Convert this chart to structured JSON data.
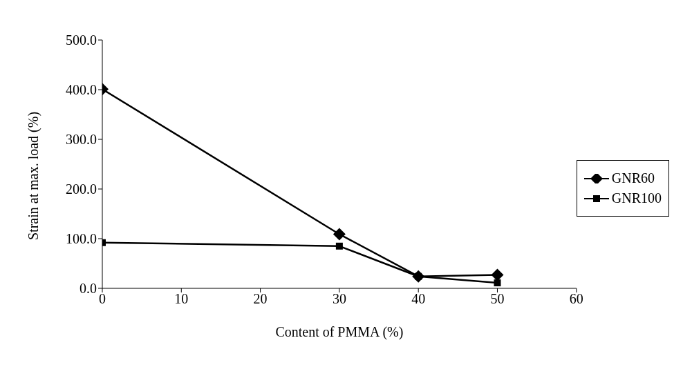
{
  "chart_data": {
    "type": "line",
    "xlabel": "Content of PMMA (%)",
    "ylabel": "Strain at max. load (%)",
    "x": [
      0,
      30,
      40,
      50
    ],
    "series": [
      {
        "name": "GNR60",
        "color": "#000000",
        "marker": "diamond",
        "values": [
          401,
          109,
          24,
          27
        ]
      },
      {
        "name": "GNR100",
        "color": "#000000",
        "marker": "square",
        "values": [
          92,
          85,
          24,
          11
        ]
      }
    ],
    "xlim": [
      0,
      60
    ],
    "xticks": [
      0,
      10,
      20,
      30,
      40,
      50,
      60
    ],
    "ylim": [
      0,
      500
    ],
    "yticks": [
      {
        "value": 0,
        "label": "0.0"
      },
      {
        "value": 100,
        "label": "100.0"
      },
      {
        "value": 200,
        "label": "200.0"
      },
      {
        "value": 300,
        "label": "300.0"
      },
      {
        "value": 400,
        "label": "400.0"
      },
      {
        "value": 500,
        "label": "500.0"
      }
    ],
    "grid": false,
    "legend": "right"
  }
}
